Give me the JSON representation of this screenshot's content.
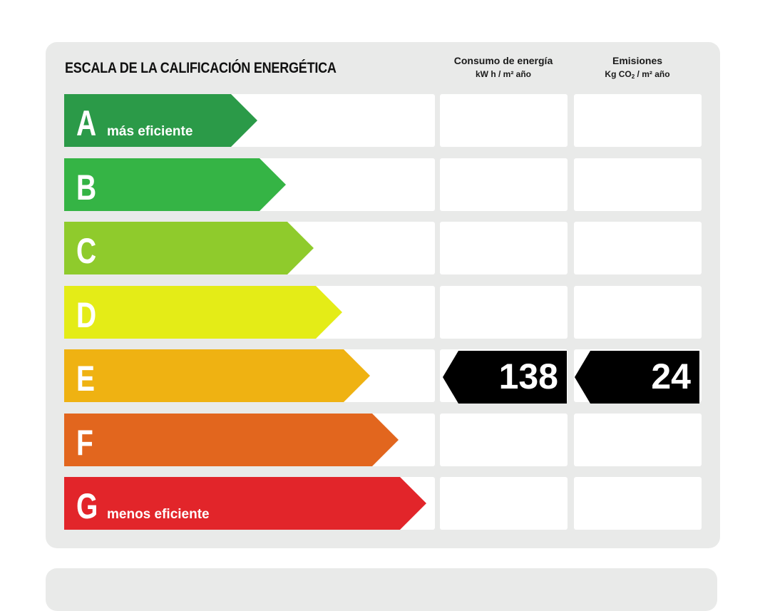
{
  "title": "ESCALA DE LA CALIFICACIÓN ENERGÉTICA",
  "columns": {
    "energy": {
      "label": "Consumo de energía",
      "unit": "kW h / m² año"
    },
    "emissions": {
      "label": "Emisiones",
      "unit_prefix": "Kg CO",
      "unit_sub": "2",
      "unit_suffix": " / m² año"
    }
  },
  "ratings": [
    {
      "letter": "A",
      "sublabel": "más eficiente",
      "color": "#2b9a48"
    },
    {
      "letter": "B",
      "sublabel": "",
      "color": "#35b445"
    },
    {
      "letter": "C",
      "sublabel": "",
      "color": "#8fcb2c"
    },
    {
      "letter": "D",
      "sublabel": "",
      "color": "#e4ec17"
    },
    {
      "letter": "E",
      "sublabel": "",
      "color": "#efb212"
    },
    {
      "letter": "F",
      "sublabel": "",
      "color": "#e2661e"
    },
    {
      "letter": "G",
      "sublabel": "menos eficiente",
      "color": "#e2252a"
    }
  ],
  "result": {
    "rating": "E",
    "energy_value": "138",
    "emissions_value": "24"
  }
}
